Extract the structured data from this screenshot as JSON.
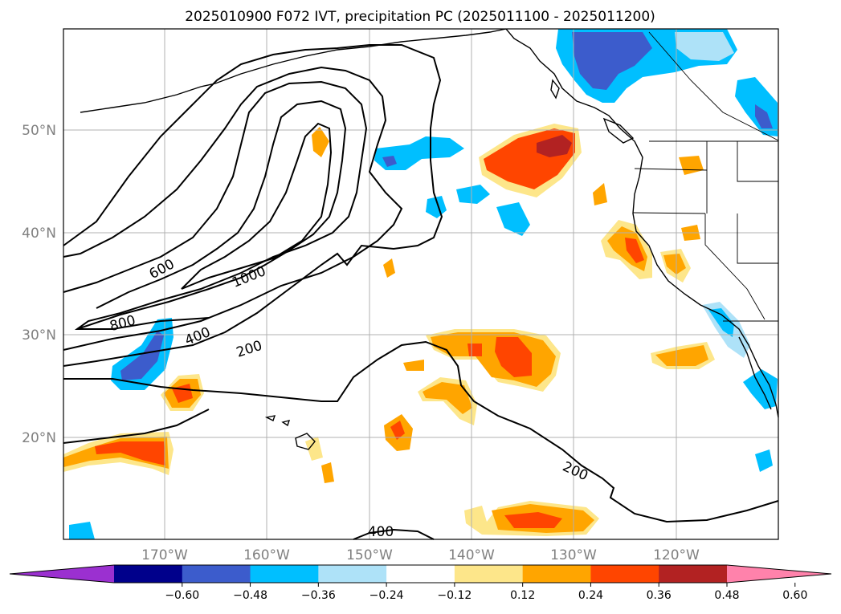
{
  "title": "2025010900 F072 IVT, precipitation PC (2025011100 - 2025011200)",
  "lat_labels": [
    "50°N",
    "40°N",
    "30°N",
    "20°N"
  ],
  "lon_labels": [
    "170°W",
    "160°W",
    "150°W",
    "140°W",
    "130°W",
    "120°W"
  ],
  "colorbar": {
    "ticks": [
      "−0.60",
      "−0.48",
      "−0.36",
      "−0.24",
      "−0.12",
      "0.12",
      "0.24",
      "0.36",
      "0.48",
      "0.60"
    ],
    "colors": [
      "#9b30d0",
      "#00008b",
      "#3c5ccc",
      "#00bfff",
      "#aee2f8",
      "#ffffff",
      "#fde68a",
      "#ffa500",
      "#ff4500",
      "#b22222",
      "#ff82ab"
    ]
  },
  "contour_labels": [
    "600",
    "1000",
    "800",
    "400",
    "200",
    "200",
    "400"
  ]
}
